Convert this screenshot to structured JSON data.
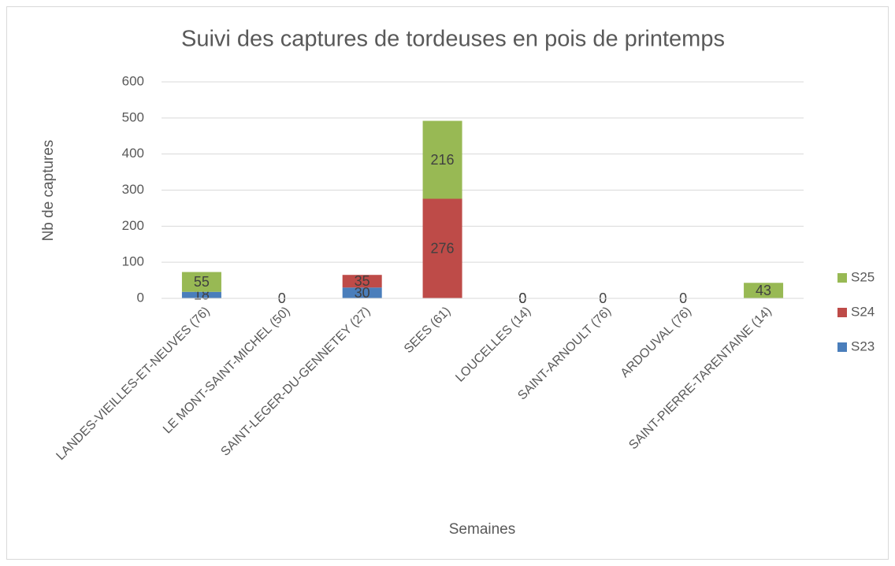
{
  "chart_data": {
    "type": "stacked_bar",
    "title": "Suivi des captures de tordeuses en pois de printemps",
    "x_label": "Semaines",
    "y_label": "Nb de captures",
    "categories": [
      "LANDES-VIEILLES-ET-NEUVES (76)",
      "LE MONT-SAINT-MICHEL (50)",
      "SAINT-LEGER-DU-GENNETEY (27)",
      "SEES (61)",
      "LOUCELLES (14)",
      "SAINT-ARNOULT (76)",
      "ARDOUVAL (76)",
      "SAINT-PIERRE-TARENTAINE (14)"
    ],
    "series": [
      {
        "name": "S23",
        "color": "#4a7ebb",
        "values": [
          18,
          0,
          30,
          null,
          0,
          0,
          0,
          null
        ]
      },
      {
        "name": "S24",
        "color": "#be4b48",
        "values": [
          null,
          null,
          35,
          276,
          0,
          null,
          null,
          null
        ]
      },
      {
        "name": "S25",
        "color": "#98b954",
        "values": [
          55,
          null,
          null,
          216,
          null,
          null,
          null,
          43
        ]
      }
    ],
    "ylim": [
      0,
      600
    ],
    "yticks": [
      0,
      100,
      200,
      300,
      400,
      500,
      600
    ],
    "grid": true,
    "legend": "right"
  }
}
